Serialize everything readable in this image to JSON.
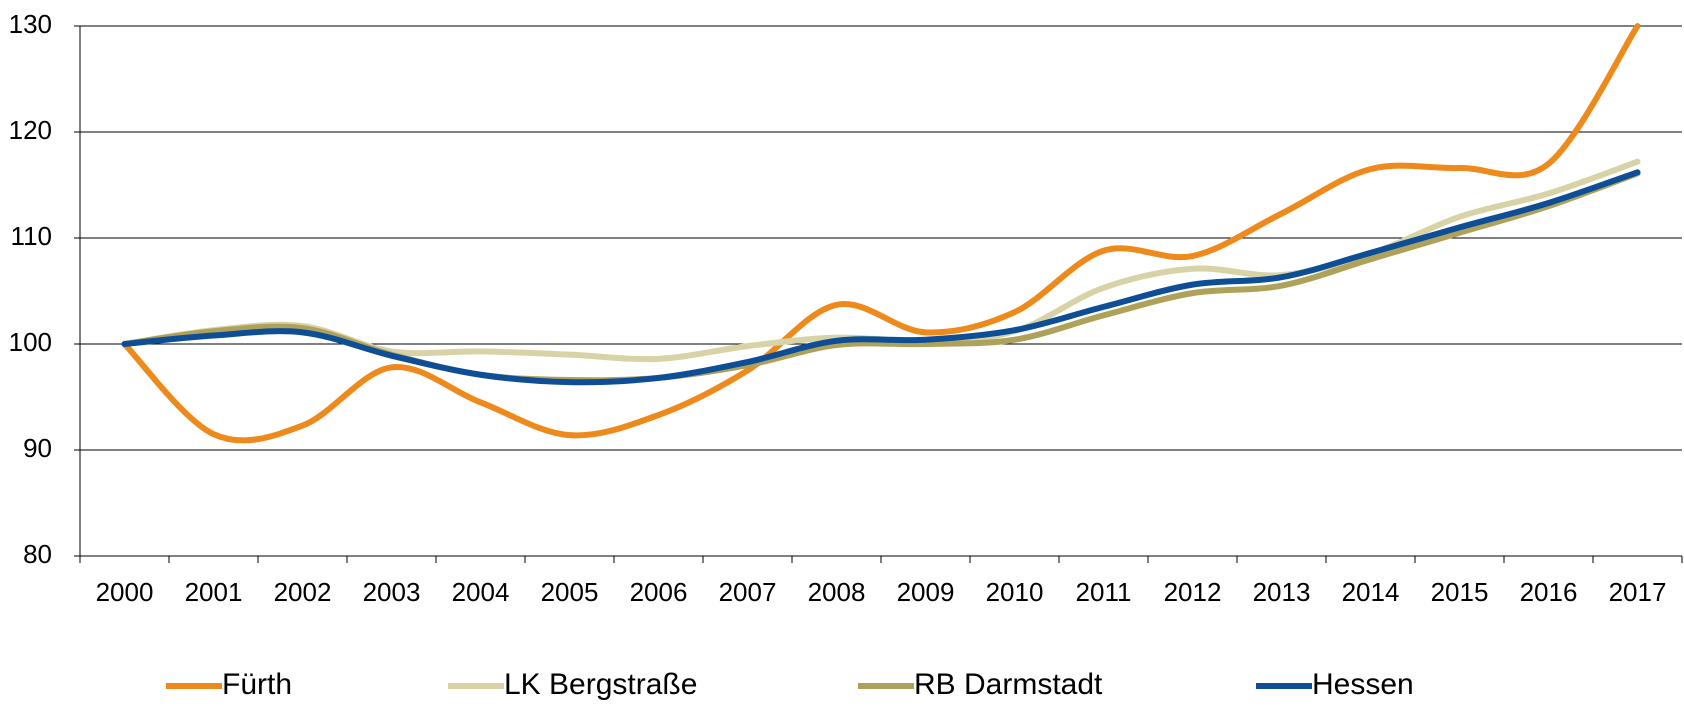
{
  "chart_data": {
    "type": "line",
    "categories": [
      "2000",
      "2001",
      "2002",
      "2003",
      "2004",
      "2005",
      "2006",
      "2007",
      "2008",
      "2009",
      "2010",
      "2011",
      "2012",
      "2013",
      "2014",
      "2015",
      "2016",
      "2017"
    ],
    "series": [
      {
        "name": "Fürth",
        "color": "#ee8a1c",
        "values": [
          100,
          91.5,
          92.3,
          97.8,
          94.5,
          91.4,
          93.3,
          97.5,
          103.7,
          101.1,
          103,
          108.8,
          108.3,
          112.3,
          116.5,
          116.6,
          117,
          130
        ]
      },
      {
        "name": "LK Bergstraße",
        "color": "#d8d3a6",
        "values": [
          100,
          101.3,
          101.7,
          99.3,
          99.3,
          99.0,
          98.6,
          99.8,
          100.6,
          100.3,
          101.2,
          105.3,
          107.1,
          106.5,
          108.5,
          112,
          114.2,
          117.2
        ]
      },
      {
        "name": "RB Darmstadt",
        "color": "#aea25a",
        "values": [
          100,
          101.2,
          101.5,
          99.0,
          97.1,
          96.6,
          96.8,
          98.0,
          99.9,
          100,
          100.4,
          102.7,
          104.8,
          105.5,
          108.0,
          110.5,
          113.0,
          116.1
        ]
      },
      {
        "name": "Hessen",
        "color": "#0e4e96",
        "values": [
          100,
          100.8,
          101.1,
          98.9,
          97.1,
          96.4,
          96.8,
          98.3,
          100.3,
          100.4,
          101.3,
          103.5,
          105.6,
          106.3,
          108.6,
          111,
          113.3,
          116.2
        ]
      }
    ],
    "ylim": [
      80,
      130
    ],
    "yticks": [
      80,
      90,
      100,
      110,
      120,
      130
    ],
    "grid": true,
    "legend": "bottom"
  }
}
